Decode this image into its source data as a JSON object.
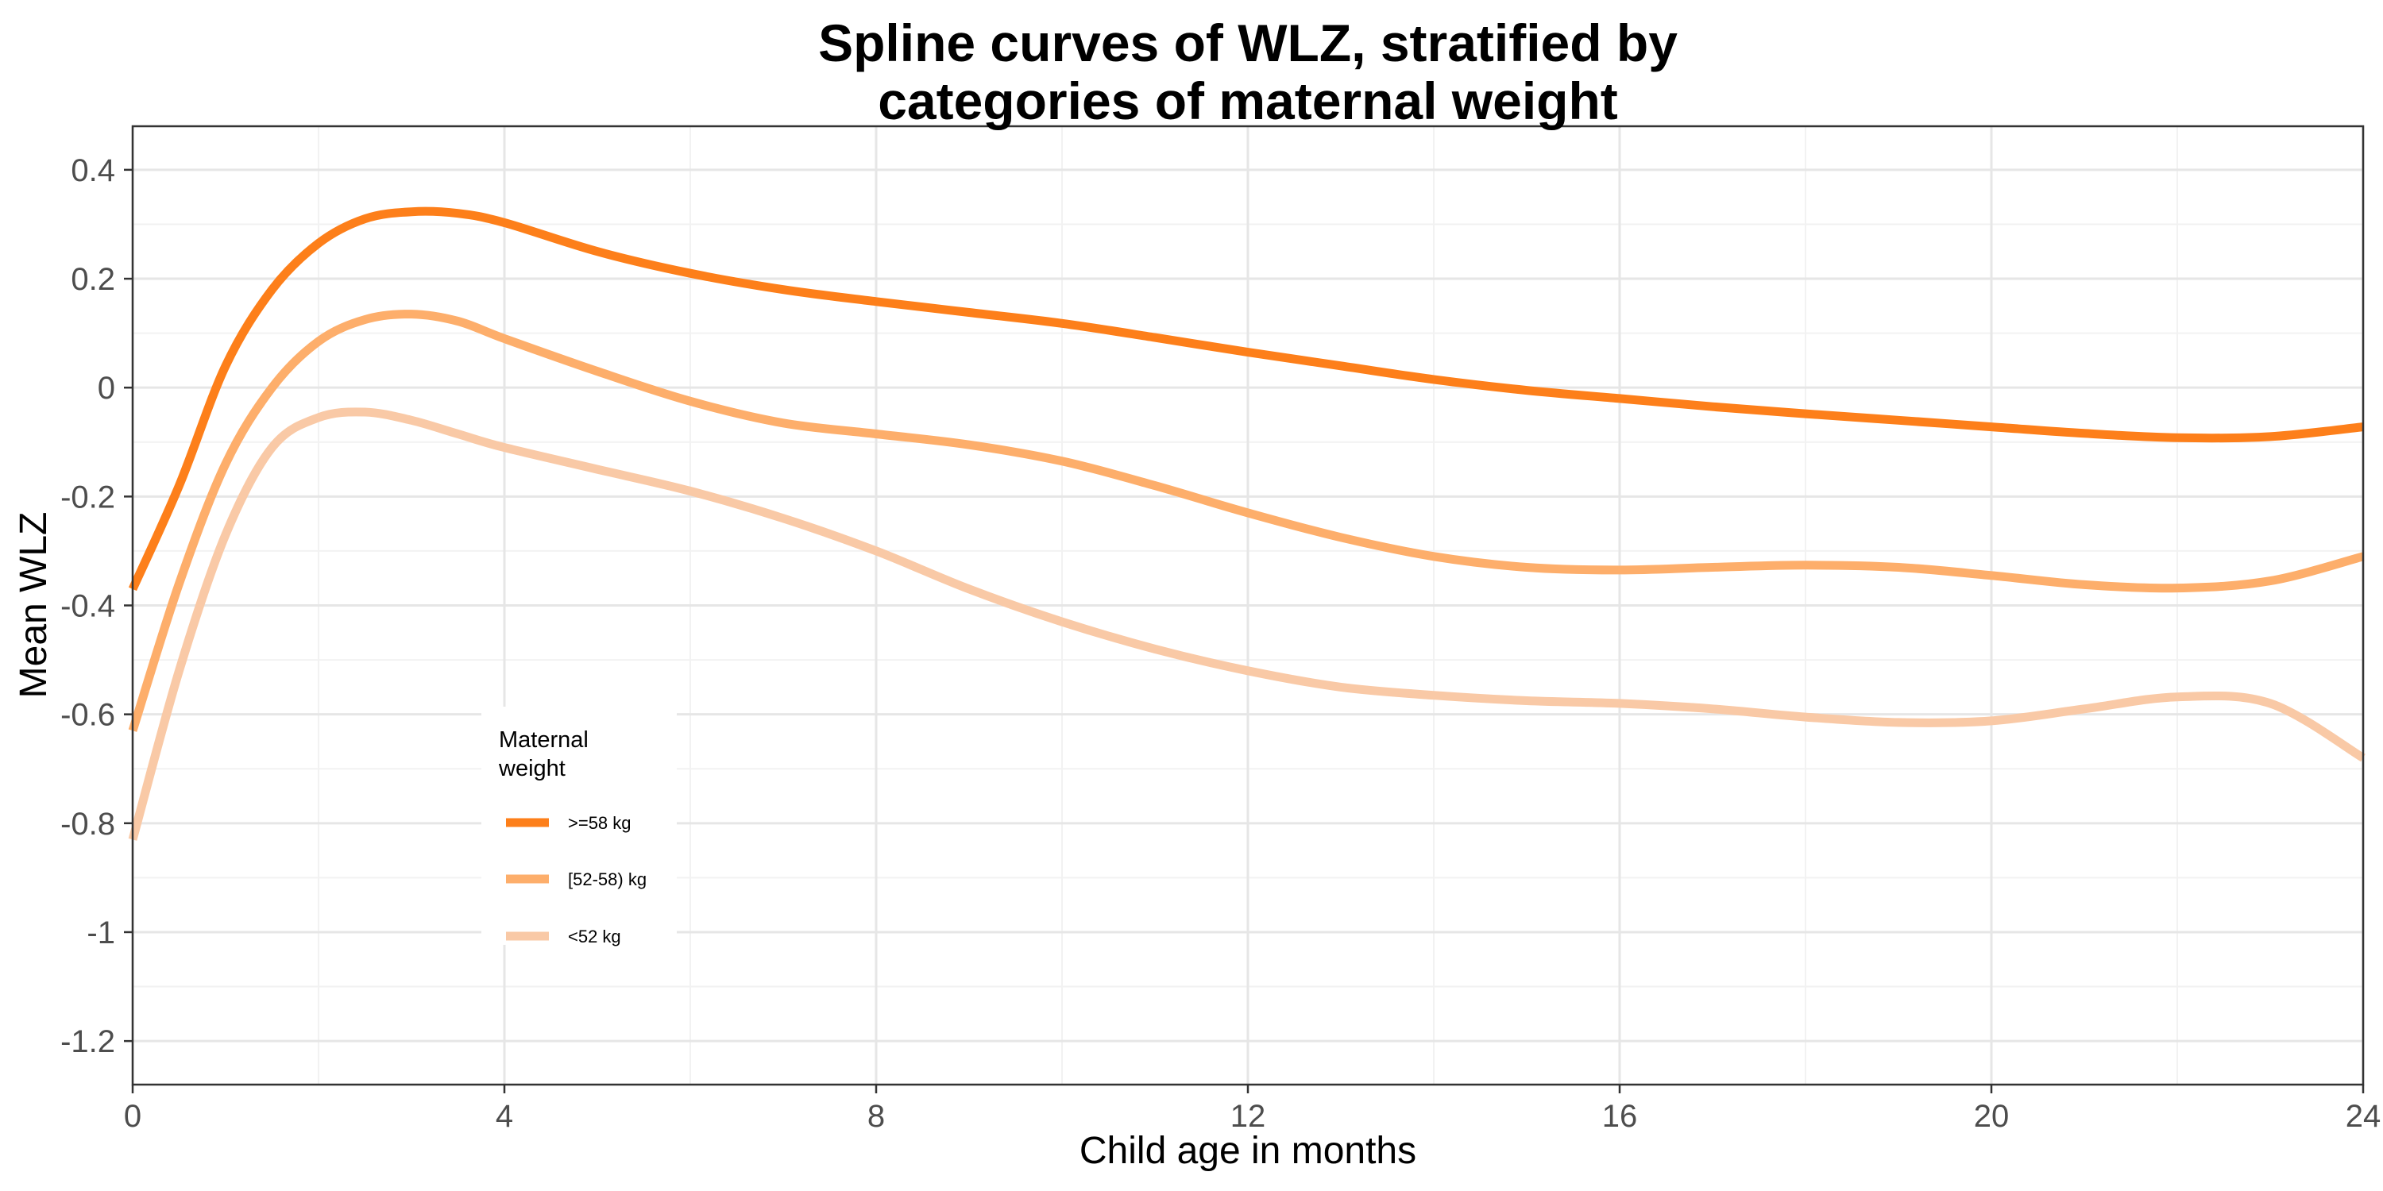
{
  "chart_data": {
    "type": "line",
    "title": "Spline curves of WLZ, stratified by categories of maternal weight",
    "title_lines": [
      "Spline curves of WLZ, stratified by",
      "categories of maternal weight"
    ],
    "xlabel": "Child age in months",
    "ylabel": "Mean WLZ",
    "xlim": [
      0,
      24
    ],
    "ylim": [
      -1.28,
      0.48
    ],
    "x_ticks": [
      0,
      4,
      8,
      12,
      16,
      20,
      24
    ],
    "x_tick_labels": [
      "0",
      "4",
      "8",
      "12",
      "16",
      "20",
      "24"
    ],
    "y_ticks": [
      0.4,
      0.2,
      0,
      -0.2,
      -0.4,
      -0.6,
      -0.8,
      -1,
      -1.2
    ],
    "y_tick_labels": [
      "0.4",
      "0.2",
      "0",
      "-0.2",
      "-0.4",
      "-0.6",
      "-0.8",
      "-1",
      "-1.2"
    ],
    "grid": true,
    "legend": {
      "title": "Maternal weight",
      "title_lines": [
        "Maternal",
        "weight"
      ],
      "position": "inside-bottom-left"
    },
    "series": [
      {
        "name": ">=58 kg",
        "color": "#fd7f1a",
        "x": [
          0,
          0.5,
          1,
          1.5,
          2,
          2.5,
          3,
          3.5,
          4,
          5,
          6,
          7,
          8,
          9,
          10,
          11,
          12,
          13,
          14,
          15,
          16,
          17,
          18,
          19,
          20,
          21,
          22,
          23,
          24
        ],
        "y": [
          -0.37,
          -0.18,
          0.04,
          0.18,
          0.265,
          0.31,
          0.323,
          0.32,
          0.303,
          0.25,
          0.21,
          0.18,
          0.158,
          0.138,
          0.118,
          0.092,
          0.065,
          0.04,
          0.015,
          -0.005,
          -0.02,
          -0.035,
          -0.048,
          -0.06,
          -0.072,
          -0.084,
          -0.092,
          -0.09,
          -0.072
        ]
      },
      {
        "name": "[52-58) kg",
        "color": "#fdae6b",
        "x": [
          0,
          0.5,
          1,
          1.5,
          2,
          2.5,
          3,
          3.5,
          4,
          5,
          6,
          7,
          8,
          9,
          10,
          11,
          12,
          13,
          14,
          15,
          16,
          17,
          18,
          19,
          20,
          21,
          22,
          23,
          24
        ],
        "y": [
          -0.63,
          -0.36,
          -0.14,
          0.0,
          0.085,
          0.125,
          0.135,
          0.122,
          0.09,
          0.03,
          -0.025,
          -0.065,
          -0.085,
          -0.105,
          -0.135,
          -0.18,
          -0.23,
          -0.275,
          -0.31,
          -0.33,
          -0.335,
          -0.33,
          -0.326,
          -0.33,
          -0.345,
          -0.362,
          -0.368,
          -0.355,
          -0.31
        ]
      },
      {
        "name": "<52 kg",
        "color": "#f9c9a6",
        "x": [
          0,
          0.5,
          1,
          1.5,
          2,
          2.5,
          3,
          3.5,
          4,
          5,
          6,
          7,
          8,
          9,
          10,
          11,
          12,
          13,
          14,
          15,
          16,
          17,
          18,
          19,
          20,
          21,
          22,
          23,
          24
        ],
        "y": [
          -0.83,
          -0.52,
          -0.27,
          -0.11,
          -0.055,
          -0.045,
          -0.06,
          -0.085,
          -0.11,
          -0.15,
          -0.19,
          -0.24,
          -0.3,
          -0.37,
          -0.43,
          -0.48,
          -0.52,
          -0.55,
          -0.565,
          -0.575,
          -0.58,
          -0.59,
          -0.605,
          -0.615,
          -0.612,
          -0.59,
          -0.568,
          -0.58,
          -0.68
        ]
      }
    ]
  }
}
